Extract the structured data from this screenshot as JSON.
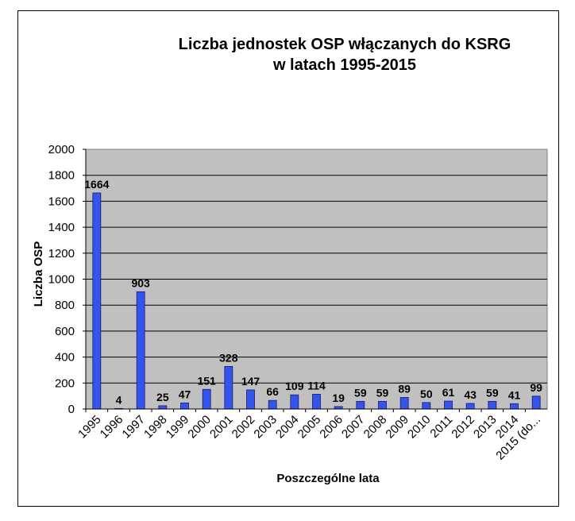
{
  "chart_data": {
    "type": "bar",
    "title": "Liczba jednostek OSP włączanych do KSRG",
    "subtitle": "w latach 1995-2015",
    "xlabel": "Poszczególne lata",
    "ylabel": "Liczba OSP",
    "ylim": [
      0,
      2000
    ],
    "yticks": [
      "0",
      "200",
      "400",
      "600",
      "800",
      "1000",
      "1200",
      "1400",
      "1600",
      "1800",
      "2000"
    ],
    "grid": true,
    "legend": "none",
    "categories": [
      "1995",
      "1996",
      "1997",
      "1998",
      "1999",
      "2000",
      "2001",
      "2002",
      "2003",
      "2004",
      "2005",
      "2006",
      "2007",
      "2008",
      "2009",
      "2010",
      "2011",
      "2012",
      "2013",
      "2014",
      "2015 (do..."
    ],
    "values": [
      1664,
      4,
      903,
      25,
      47,
      151,
      328,
      147,
      66,
      109,
      114,
      19,
      59,
      59,
      89,
      50,
      61,
      43,
      59,
      41,
      99
    ],
    "data_labels": [
      "1664",
      "4",
      "903",
      "25",
      "47",
      "151",
      "328",
      "147",
      "66",
      "109",
      "114",
      "19",
      "59",
      "59",
      "89",
      "50",
      "61",
      "43",
      "59",
      "41",
      "99"
    ],
    "colors": {
      "bar": "#3355ee",
      "bar_edge": "#1a1a66",
      "plot_bg": "#c0c0c0"
    }
  }
}
